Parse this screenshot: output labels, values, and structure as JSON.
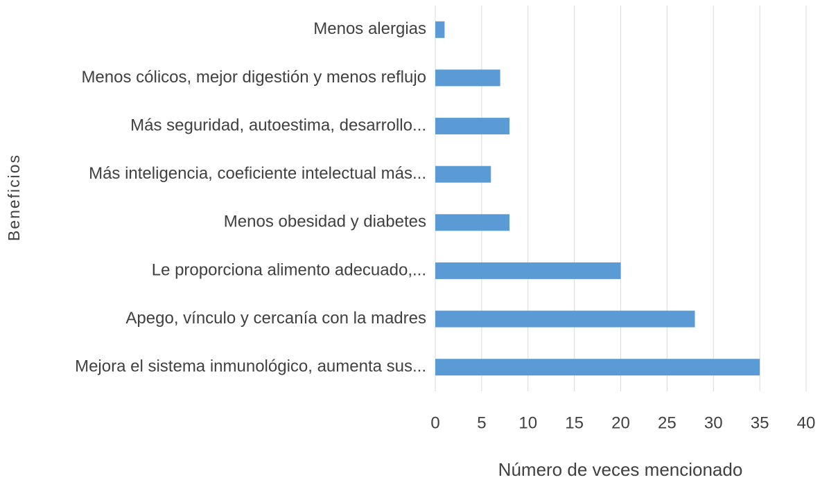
{
  "chart_data": {
    "type": "hbar",
    "y_label": "Beneficios",
    "x_label": "Número de veces mencionado",
    "categories": [
      "Menos alergias",
      "Menos cólicos, mejor digestión y menos reflujo",
      "Más seguridad, autoestima, desarrollo...",
      "Más inteligencia, coeficiente intelectual más...",
      "Menos obesidad y diabetes",
      "Le proporciona alimento adecuado,...",
      "Apego, vínculo y cercanía con la madres",
      "Mejora el sistema inmunológico, aumenta sus..."
    ],
    "values": [
      1,
      7,
      8,
      6,
      8,
      20,
      28,
      35
    ],
    "color": "#5b9bd5",
    "xlim": [
      0,
      40
    ],
    "xticks": [
      0,
      5,
      10,
      15,
      20,
      25,
      30,
      35,
      40
    ],
    "grid": true
  }
}
